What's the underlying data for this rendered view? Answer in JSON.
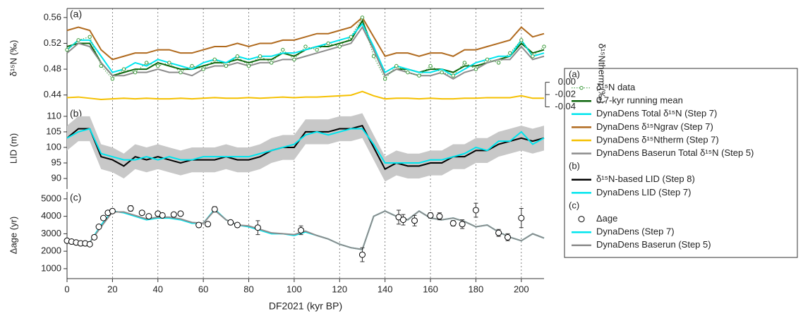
{
  "chart_data": [
    {
      "type": "line",
      "panel_label": "(a)",
      "ylabel": "δ¹⁵N (‰)",
      "y2label": "δ¹⁵Ntherm (‰)",
      "xlim": [
        0,
        210
      ],
      "xticks": [
        0,
        20,
        40,
        60,
        80,
        100,
        120,
        140,
        160,
        180,
        200
      ],
      "grid": true,
      "ylim": [
        0.42,
        0.574
      ],
      "yticks": [
        0.56,
        0.52,
        0.48,
        0.44
      ],
      "y2lim": [
        -0.0417,
        0.12
      ],
      "y2ticks": [
        {
          "value": 0,
          "label": "0.00"
        },
        -0.02,
        -0.04
      ],
      "x": [
        0,
        5,
        10,
        15,
        20,
        25,
        30,
        35,
        40,
        45,
        50,
        55,
        60,
        65,
        70,
        75,
        80,
        85,
        90,
        95,
        100,
        105,
        110,
        115,
        120,
        125,
        130,
        135,
        140,
        145,
        150,
        155,
        160,
        165,
        170,
        175,
        180,
        185,
        190,
        195,
        200,
        205,
        210
      ],
      "series": [
        {
          "name": "δ¹⁵N data",
          "color": "#3a9a3a",
          "line_style": "dotted",
          "marker": "circle",
          "values": [
            0.51,
            0.525,
            0.53,
            0.485,
            0.465,
            0.48,
            0.475,
            0.49,
            0.485,
            0.49,
            0.475,
            0.485,
            0.48,
            0.495,
            0.485,
            0.5,
            0.485,
            0.5,
            0.49,
            0.51,
            0.495,
            0.515,
            0.51,
            0.52,
            0.515,
            0.53,
            0.56,
            0.5,
            0.465,
            0.485,
            0.475,
            0.47,
            0.485,
            0.475,
            0.47,
            0.49,
            0.48,
            0.495,
            0.49,
            0.505,
            0.525,
            0.5,
            0.515
          ]
        },
        {
          "name": "0.7-kyr running mean",
          "color": "#0a640a",
          "line_style": "solid",
          "values": [
            0.515,
            0.52,
            0.52,
            0.49,
            0.47,
            0.475,
            0.48,
            0.48,
            0.49,
            0.485,
            0.48,
            0.48,
            0.485,
            0.49,
            0.49,
            0.495,
            0.49,
            0.495,
            0.495,
            0.505,
            0.5,
            0.51,
            0.515,
            0.515,
            0.52,
            0.525,
            0.555,
            0.51,
            0.47,
            0.48,
            0.48,
            0.475,
            0.48,
            0.48,
            0.475,
            0.485,
            0.485,
            0.49,
            0.495,
            0.5,
            0.52,
            0.505,
            0.51
          ]
        },
        {
          "name": "DynaDens Total δ¹⁵N (Step 7)",
          "color": "#00e5ee",
          "line_style": "solid",
          "values": [
            0.51,
            0.525,
            0.525,
            0.5,
            0.475,
            0.48,
            0.49,
            0.485,
            0.495,
            0.49,
            0.485,
            0.48,
            0.49,
            0.495,
            0.49,
            0.5,
            0.495,
            0.5,
            0.5,
            0.505,
            0.505,
            0.51,
            0.515,
            0.52,
            0.525,
            0.53,
            0.55,
            0.515,
            0.475,
            0.485,
            0.48,
            0.475,
            0.475,
            0.48,
            0.47,
            0.48,
            0.49,
            0.495,
            0.5,
            0.5,
            0.525,
            0.5,
            0.505
          ]
        },
        {
          "name": "DynaDens δ¹⁵Ngrav (Step 7)",
          "color": "#b06a1e",
          "line_style": "solid",
          "values": [
            0.54,
            0.545,
            0.54,
            0.51,
            0.495,
            0.5,
            0.505,
            0.505,
            0.51,
            0.51,
            0.505,
            0.505,
            0.51,
            0.515,
            0.515,
            0.52,
            0.515,
            0.52,
            0.52,
            0.525,
            0.525,
            0.53,
            0.535,
            0.535,
            0.54,
            0.545,
            0.56,
            0.53,
            0.5,
            0.505,
            0.505,
            0.5,
            0.505,
            0.505,
            0.5,
            0.51,
            0.51,
            0.515,
            0.52,
            0.525,
            0.545,
            0.53,
            0.535
          ]
        },
        {
          "name": "DynaDens δ¹⁵Ntherm (Step 7)",
          "color": "#f5c000",
          "line_style": "solid",
          "axis": "y2",
          "values": [
            -0.025,
            -0.024,
            -0.026,
            -0.028,
            -0.027,
            -0.026,
            -0.027,
            -0.026,
            -0.027,
            -0.027,
            -0.026,
            -0.027,
            -0.026,
            -0.025,
            -0.026,
            -0.026,
            -0.025,
            -0.026,
            -0.025,
            -0.024,
            -0.025,
            -0.024,
            -0.024,
            -0.023,
            -0.022,
            -0.021,
            -0.015,
            -0.022,
            -0.027,
            -0.026,
            -0.026,
            -0.027,
            -0.026,
            -0.027,
            -0.027,
            -0.026,
            -0.026,
            -0.025,
            -0.025,
            -0.025,
            -0.022,
            -0.026,
            -0.026
          ]
        },
        {
          "name": "DynaDens Baserun Total δ¹⁵N (Step 5)",
          "color": "#8c8c8c",
          "line_style": "solid",
          "values": [
            0.505,
            0.52,
            0.515,
            0.49,
            0.47,
            0.47,
            0.475,
            0.475,
            0.48,
            0.475,
            0.475,
            0.47,
            0.48,
            0.485,
            0.485,
            0.49,
            0.485,
            0.49,
            0.49,
            0.495,
            0.495,
            0.5,
            0.505,
            0.51,
            0.515,
            0.52,
            0.545,
            0.51,
            0.47,
            0.48,
            0.475,
            0.47,
            0.47,
            0.475,
            0.465,
            0.475,
            0.48,
            0.49,
            0.495,
            0.495,
            0.515,
            0.495,
            0.5
          ]
        }
      ]
    },
    {
      "type": "line",
      "panel_label": "(b)",
      "ylabel": "LID (m)",
      "xlim": [
        0,
        210
      ],
      "xticks": [
        0,
        20,
        40,
        60,
        80,
        100,
        120,
        140,
        160,
        180,
        200
      ],
      "grid": true,
      "ylim": [
        86.6,
        112.7
      ],
      "yticks": [
        110,
        105,
        100,
        95,
        90
      ],
      "x": [
        0,
        5,
        10,
        15,
        20,
        25,
        30,
        35,
        40,
        45,
        50,
        55,
        60,
        65,
        70,
        75,
        80,
        85,
        90,
        95,
        100,
        105,
        110,
        115,
        120,
        125,
        130,
        135,
        140,
        145,
        150,
        155,
        160,
        165,
        170,
        175,
        180,
        185,
        190,
        195,
        200,
        205,
        210
      ],
      "series": [
        {
          "name": "δ¹⁵N-based LID (Step 8)",
          "color": "#000000",
          "line_style": "solid",
          "band_color": "#c8c8c8",
          "values": [
            103,
            106,
            106,
            97,
            96,
            94,
            97,
            96,
            97,
            96,
            95,
            96,
            96,
            96,
            97,
            96,
            96,
            97,
            99,
            100,
            100,
            105,
            105,
            105,
            106,
            106,
            107,
            100,
            93,
            95,
            94,
            94,
            95,
            95,
            97,
            97,
            99,
            99,
            101,
            102,
            103,
            102,
            103
          ],
          "error": [
            4,
            4,
            4,
            4,
            4,
            4,
            4,
            4,
            4,
            4,
            4,
            4,
            4,
            4,
            4,
            4,
            4,
            4,
            4,
            4,
            4,
            4,
            4,
            4,
            4,
            4,
            4,
            4,
            4,
            4,
            4,
            4,
            4,
            4,
            4,
            4,
            4,
            4,
            4,
            4,
            4,
            4,
            4
          ]
        },
        {
          "name": "DynaDens LID (Step 7)",
          "color": "#00e5ee",
          "line_style": "solid",
          "values": [
            103,
            105,
            106,
            98,
            97,
            96,
            96,
            97,
            96,
            97,
            96,
            96,
            97,
            97,
            97,
            97,
            97,
            98,
            99,
            100,
            101,
            104,
            105,
            104,
            105,
            106,
            106,
            101,
            95,
            95,
            95,
            95,
            96,
            96,
            97,
            98,
            100,
            99,
            102,
            102,
            105,
            101,
            103
          ]
        }
      ]
    },
    {
      "type": "line",
      "panel_label": "(c)",
      "ylabel": "Δage (yr)",
      "xlabel": "DF2021 (kyr BP)",
      "xlim": [
        0,
        210
      ],
      "xticks": [
        0,
        20,
        40,
        60,
        80,
        100,
        120,
        140,
        160,
        180,
        200
      ],
      "grid": true,
      "ylim": [
        430,
        5400
      ],
      "yticks": [
        5000,
        4000,
        3000,
        2000,
        1000
      ],
      "x": [
        0,
        5,
        10,
        15,
        20,
        25,
        30,
        35,
        40,
        45,
        50,
        55,
        60,
        65,
        70,
        75,
        80,
        85,
        90,
        95,
        100,
        105,
        110,
        115,
        120,
        125,
        130,
        135,
        140,
        145,
        150,
        155,
        160,
        165,
        170,
        175,
        180,
        185,
        190,
        195,
        200,
        205,
        210
      ],
      "series": [
        {
          "name": "Δage",
          "color": "#000000",
          "line_style": "none",
          "marker": "open-circle",
          "x": [
            0,
            2,
            4,
            6,
            8,
            10,
            12,
            14,
            16,
            18,
            20,
            28,
            33,
            36,
            40,
            42,
            47,
            50,
            58,
            62,
            65,
            72,
            75,
            84,
            103,
            130,
            146,
            148,
            153,
            160,
            164,
            170,
            174,
            180,
            190,
            194,
            200
          ],
          "values": [
            2600,
            2550,
            2500,
            2450,
            2450,
            2400,
            2800,
            3400,
            3900,
            4200,
            4300,
            4450,
            4200,
            4000,
            4150,
            4050,
            4100,
            4150,
            3500,
            3550,
            4400,
            3650,
            3500,
            3350,
            3200,
            1800,
            3950,
            3800,
            3750,
            4050,
            4000,
            3600,
            3550,
            4350,
            3050,
            2800,
            3900
          ],
          "errors": [
            0,
            0,
            0,
            0,
            0,
            0,
            0,
            0,
            0,
            0,
            0,
            150,
            0,
            0,
            0,
            0,
            0,
            0,
            0,
            0,
            150,
            120,
            0,
            400,
            250,
            400,
            400,
            300,
            300,
            150,
            200,
            150,
            250,
            400,
            200,
            200,
            550
          ]
        },
        {
          "name": "DynaDens (Step 7)",
          "color": "#00e5ee",
          "line_style": "solid",
          "values": [
            2550,
            2450,
            2500,
            3500,
            4300,
            4200,
            4000,
            3800,
            3900,
            3900,
            3800,
            3600,
            3600,
            4400,
            3800,
            3500,
            3400,
            3200,
            3000,
            3000,
            2900,
            3100,
            2900,
            2700,
            2400,
            2200,
            2100,
            4000,
            4300,
            4000,
            3800,
            4300,
            3900,
            3800,
            3900,
            3700,
            3400,
            3500,
            3100,
            2800,
            2600,
            3000,
            2750
          ]
        },
        {
          "name": "DynaDens Baserun (Step 5)",
          "color": "#8c8c8c",
          "line_style": "solid",
          "values": [
            2550,
            2450,
            2500,
            3400,
            4250,
            4250,
            4050,
            3850,
            3950,
            3950,
            3850,
            3650,
            3600,
            4350,
            3800,
            3500,
            3450,
            3250,
            3050,
            3000,
            2950,
            3150,
            2900,
            2700,
            2400,
            2200,
            2100,
            4000,
            4300,
            4000,
            3800,
            4300,
            3900,
            3800,
            3900,
            3700,
            3400,
            3500,
            3100,
            2800,
            2600,
            3000,
            2750
          ]
        }
      ]
    }
  ]
}
